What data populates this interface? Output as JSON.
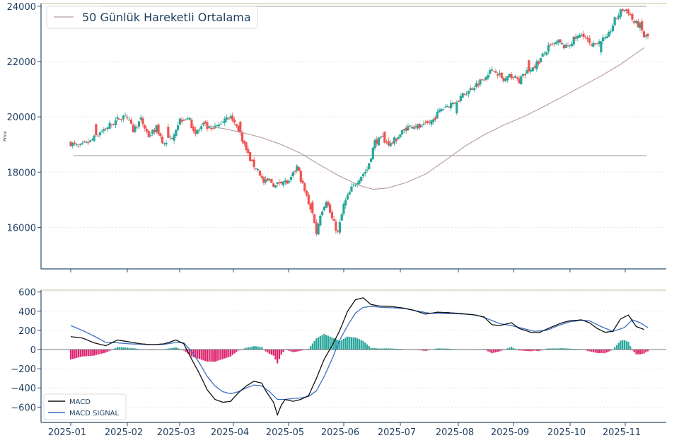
{
  "colors": {
    "up": "#26a69a",
    "down": "#ef5350",
    "ma": "#b89aa0",
    "hist_pos": "#26a69a",
    "hist_neg": "#e0216f",
    "macd": "#111111",
    "signal": "#3a6fc4",
    "hline": "#b0b0b0",
    "axis": "#2d4f6f",
    "top_border": "#d8d5b8"
  },
  "chart_data": [
    {
      "type": "candlestick",
      "ylabel": "Price",
      "ylim": [
        14500,
        24100
      ],
      "yticks": [
        16000,
        18000,
        20000,
        22000,
        24000
      ],
      "grid": "horizontal dotted",
      "legend": {
        "position": "top-left",
        "entries": [
          "50 Günlük Hareketli Ortalama"
        ]
      },
      "horizontal_lines": [
        24000,
        18600
      ],
      "price_path": [
        [
          0,
          19050
        ],
        [
          4,
          18900
        ],
        [
          10,
          19100
        ],
        [
          16,
          19500
        ],
        [
          22,
          19800
        ],
        [
          28,
          20100
        ],
        [
          32,
          19500
        ],
        [
          36,
          19900
        ],
        [
          40,
          19300
        ],
        [
          44,
          19600
        ],
        [
          48,
          19000
        ],
        [
          52,
          19300
        ],
        [
          56,
          19900
        ],
        [
          60,
          20000
        ],
        [
          64,
          19400
        ],
        [
          68,
          19700
        ],
        [
          72,
          19500
        ],
        [
          76,
          19700
        ],
        [
          80,
          20050
        ],
        [
          83,
          19900
        ],
        [
          87,
          19400
        ],
        [
          90,
          18800
        ],
        [
          93,
          18300
        ],
        [
          96,
          18100
        ],
        [
          99,
          17600
        ],
        [
          102,
          17700
        ],
        [
          105,
          17500
        ],
        [
          108,
          17700
        ],
        [
          112,
          17600
        ],
        [
          116,
          18200
        ],
        [
          120,
          17300
        ],
        [
          124,
          16500
        ],
        [
          126,
          15800
        ],
        [
          128,
          16500
        ],
        [
          131,
          17000
        ],
        [
          134,
          16300
        ],
        [
          137,
          15800
        ],
        [
          140,
          16800
        ],
        [
          144,
          17400
        ],
        [
          148,
          17800
        ],
        [
          152,
          18100
        ],
        [
          156,
          19100
        ],
        [
          160,
          19200
        ],
        [
          164,
          19000
        ],
        [
          168,
          19300
        ],
        [
          172,
          19600
        ],
        [
          176,
          19700
        ],
        [
          180,
          19600
        ],
        [
          186,
          19900
        ],
        [
          190,
          20300
        ],
        [
          196,
          20500
        ],
        [
          200,
          20700
        ],
        [
          205,
          21000
        ],
        [
          210,
          21300
        ],
        [
          214,
          21600
        ],
        [
          218,
          21700
        ],
        [
          222,
          21300
        ],
        [
          226,
          21500
        ],
        [
          230,
          21300
        ],
        [
          235,
          21700
        ],
        [
          240,
          22000
        ],
        [
          245,
          22500
        ],
        [
          250,
          22700
        ],
        [
          254,
          22500
        ],
        [
          258,
          22800
        ],
        [
          263,
          23000
        ],
        [
          267,
          22500
        ],
        [
          271,
          22800
        ],
        [
          275,
          22800
        ],
        [
          279,
          23500
        ],
        [
          283,
          23900
        ],
        [
          286,
          23800
        ],
        [
          289,
          23400
        ],
        [
          292,
          23300
        ],
        [
          294,
          22900
        ]
      ],
      "moving_average": [
        [
          68,
          19700
        ],
        [
          78,
          19580
        ],
        [
          88,
          19430
        ],
        [
          98,
          19250
        ],
        [
          108,
          19000
        ],
        [
          118,
          18680
        ],
        [
          128,
          18250
        ],
        [
          138,
          17850
        ],
        [
          148,
          17520
        ],
        [
          155,
          17380
        ],
        [
          162,
          17420
        ],
        [
          172,
          17620
        ],
        [
          182,
          17930
        ],
        [
          192,
          18420
        ],
        [
          202,
          18930
        ],
        [
          212,
          19350
        ],
        [
          222,
          19700
        ],
        [
          232,
          20000
        ],
        [
          242,
          20350
        ],
        [
          252,
          20720
        ],
        [
          262,
          21100
        ],
        [
          272,
          21480
        ],
        [
          282,
          21900
        ],
        [
          294,
          22500
        ]
      ],
      "date_ticks": [
        "2025-01",
        "2025-02",
        "2025-03",
        "2025-04",
        "2025-05",
        "2025-06",
        "2025-07",
        "2025-08",
        "2025-09",
        "2025-10",
        "2025-11"
      ]
    },
    {
      "type": "macd",
      "ylim": [
        -760,
        620
      ],
      "yticks": [
        -600,
        -400,
        -200,
        0,
        200,
        400,
        600
      ],
      "grid": "horizontal dotted",
      "legend": {
        "position": "bottom-left",
        "entries": [
          "MACD",
          "MACD SIGNAL"
        ]
      },
      "series": [
        {
          "name": "MACD",
          "points": [
            [
              0,
              135
            ],
            [
              6,
              120
            ],
            [
              12,
              70
            ],
            [
              18,
              40
            ],
            [
              24,
              100
            ],
            [
              30,
              80
            ],
            [
              36,
              60
            ],
            [
              42,
              50
            ],
            [
              48,
              60
            ],
            [
              54,
              100
            ],
            [
              58,
              60
            ],
            [
              62,
              -100
            ],
            [
              66,
              -250
            ],
            [
              70,
              -420
            ],
            [
              74,
              -520
            ],
            [
              78,
              -550
            ],
            [
              82,
              -540
            ],
            [
              86,
              -450
            ],
            [
              90,
              -380
            ],
            [
              94,
              -330
            ],
            [
              98,
              -350
            ],
            [
              100,
              -430
            ],
            [
              104,
              -550
            ],
            [
              106,
              -680
            ],
            [
              108,
              -580
            ],
            [
              110,
              -520
            ],
            [
              114,
              -540
            ],
            [
              118,
              -520
            ],
            [
              122,
              -480
            ],
            [
              126,
              -300
            ],
            [
              130,
              -100
            ],
            [
              134,
              40
            ],
            [
              138,
              200
            ],
            [
              142,
              400
            ],
            [
              146,
              520
            ],
            [
              150,
              540
            ],
            [
              154,
              470
            ],
            [
              158,
              455
            ],
            [
              164,
              450
            ],
            [
              170,
              435
            ],
            [
              176,
              410
            ],
            [
              182,
              370
            ],
            [
              188,
              390
            ],
            [
              194,
              385
            ],
            [
              200,
              375
            ],
            [
              206,
              365
            ],
            [
              212,
              340
            ],
            [
              216,
              260
            ],
            [
              220,
              250
            ],
            [
              226,
              280
            ],
            [
              230,
              220
            ],
            [
              236,
              180
            ],
            [
              240,
              175
            ],
            [
              246,
              230
            ],
            [
              252,
              280
            ],
            [
              256,
              300
            ],
            [
              262,
              310
            ],
            [
              266,
              280
            ],
            [
              270,
              220
            ],
            [
              274,
              180
            ],
            [
              278,
              190
            ],
            [
              282,
              320
            ],
            [
              286,
              360
            ],
            [
              290,
              240
            ],
            [
              294,
              210
            ]
          ]
        },
        {
          "name": "MACD SIGNAL",
          "points": [
            [
              0,
              250
            ],
            [
              6,
              200
            ],
            [
              12,
              140
            ],
            [
              18,
              75
            ],
            [
              24,
              70
            ],
            [
              30,
              60
            ],
            [
              36,
              55
            ],
            [
              42,
              52
            ],
            [
              48,
              55
            ],
            [
              54,
              75
            ],
            [
              58,
              70
            ],
            [
              62,
              -20
            ],
            [
              66,
              -140
            ],
            [
              70,
              -280
            ],
            [
              74,
              -380
            ],
            [
              78,
              -440
            ],
            [
              82,
              -460
            ],
            [
              86,
              -440
            ],
            [
              90,
              -400
            ],
            [
              94,
              -370
            ],
            [
              98,
              -380
            ],
            [
              102,
              -440
            ],
            [
              106,
              -520
            ],
            [
              110,
              -520
            ],
            [
              114,
              -510
            ],
            [
              118,
              -505
            ],
            [
              122,
              -490
            ],
            [
              126,
              -430
            ],
            [
              130,
              -280
            ],
            [
              134,
              -100
            ],
            [
              138,
              100
            ],
            [
              142,
              250
            ],
            [
              146,
              380
            ],
            [
              150,
              440
            ],
            [
              154,
              450
            ],
            [
              160,
              440
            ],
            [
              166,
              435
            ],
            [
              172,
              425
            ],
            [
              178,
              400
            ],
            [
              184,
              380
            ],
            [
              190,
              375
            ],
            [
              196,
              375
            ],
            [
              202,
              370
            ],
            [
              208,
              360
            ],
            [
              214,
              320
            ],
            [
              220,
              270
            ],
            [
              226,
              250
            ],
            [
              232,
              220
            ],
            [
              238,
              190
            ],
            [
              244,
              200
            ],
            [
              250,
              250
            ],
            [
              256,
              290
            ],
            [
              262,
              305
            ],
            [
              266,
              300
            ],
            [
              272,
              240
            ],
            [
              278,
              190
            ],
            [
              284,
              230
            ],
            [
              288,
              310
            ],
            [
              292,
              280
            ],
            [
              296,
              230
            ]
          ]
        }
      ],
      "date_ticks": [
        "2025-01",
        "2025-02",
        "2025-03",
        "2025-04",
        "2025-05",
        "2025-06",
        "2025-07",
        "2025-08",
        "2025-09",
        "2025-10",
        "2025-11"
      ]
    }
  ]
}
